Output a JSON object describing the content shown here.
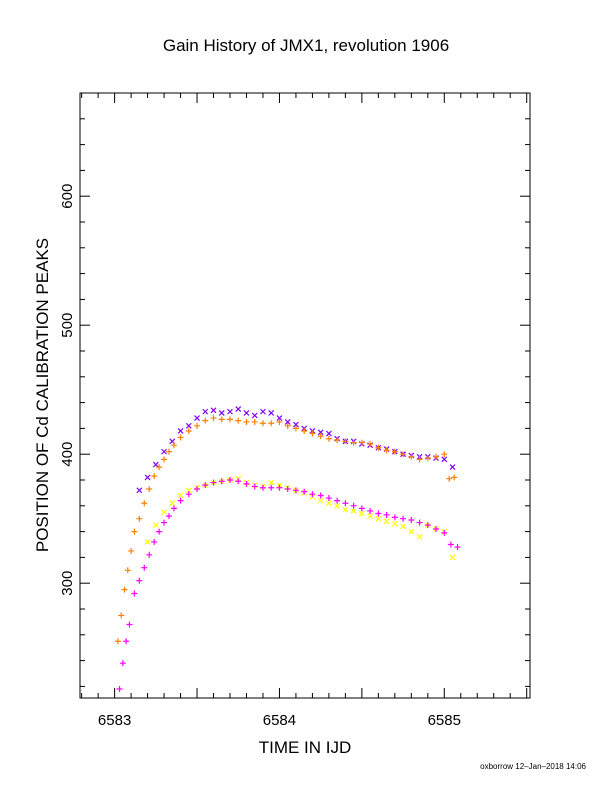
{
  "chart_data": {
    "type": "scatter",
    "title": "Gain History of JMX1, revolution 1906",
    "xlabel": "TIME IN IJD",
    "ylabel": "POSITION OF Cd CALIBRATION PEAKS",
    "xlim": [
      6582.79,
      6585.52
    ],
    "ylim": [
      211,
      680
    ],
    "x_ticks": [
      6583,
      6584,
      6585
    ],
    "y_ticks": [
      300,
      400,
      500,
      600
    ],
    "grid": false,
    "series": [
      {
        "marker": "x",
        "color": "#8000ff",
        "x": [
          6583.15,
          6583.2,
          6583.25,
          6583.3,
          6583.35,
          6583.4,
          6583.45,
          6583.5,
          6583.55,
          6583.6,
          6583.65,
          6583.7,
          6583.75,
          6583.8,
          6583.85,
          6583.9,
          6583.95,
          6584.0,
          6584.05,
          6584.1,
          6584.15,
          6584.2,
          6584.25,
          6584.3,
          6584.35,
          6584.4,
          6584.45,
          6584.5,
          6584.55,
          6584.6,
          6584.65,
          6584.7,
          6584.75,
          6584.8,
          6584.85,
          6584.9,
          6584.95,
          6585.0,
          6585.05
        ],
        "y": [
          372,
          382,
          392,
          402,
          410,
          418,
          422,
          428,
          433,
          434,
          432,
          433,
          435,
          432,
          430,
          433,
          432,
          428,
          425,
          423,
          420,
          418,
          417,
          416,
          412,
          410,
          410,
          408,
          407,
          405,
          404,
          402,
          400,
          399,
          398,
          398,
          397,
          396,
          390
        ]
      },
      {
        "marker": "+",
        "color": "#ff8000",
        "x": [
          6583.02,
          6583.04,
          6583.06,
          6583.08,
          6583.1,
          6583.12,
          6583.15,
          6583.18,
          6583.21,
          6583.24,
          6583.27,
          6583.3,
          6583.33,
          6583.36,
          6583.4,
          6583.45,
          6583.5,
          6583.55,
          6583.6,
          6583.65,
          6583.7,
          6583.75,
          6583.8,
          6583.85,
          6583.9,
          6583.95,
          6584.0,
          6584.05,
          6584.1,
          6584.15,
          6584.2,
          6584.25,
          6584.3,
          6584.35,
          6584.4,
          6584.45,
          6584.5,
          6584.55,
          6584.6,
          6584.65,
          6584.7,
          6584.75,
          6584.8,
          6584.85,
          6584.9,
          6584.95,
          6585.0,
          6585.03,
          6585.06
        ],
        "y": [
          255,
          275,
          295,
          310,
          325,
          340,
          350,
          362,
          373,
          383,
          390,
          396,
          402,
          407,
          413,
          418,
          422,
          426,
          428,
          427,
          427,
          426,
          425,
          425,
          424,
          424,
          425,
          422,
          420,
          418,
          416,
          414,
          412,
          411,
          410,
          409,
          409,
          408,
          405,
          403,
          402,
          400,
          398,
          396,
          397,
          398,
          400,
          381,
          382
        ]
      },
      {
        "marker": "x",
        "color": "#ffff00",
        "x": [
          6583.2,
          6583.25,
          6583.3,
          6583.35,
          6583.4,
          6583.45,
          6583.5,
          6583.55,
          6583.6,
          6583.65,
          6583.7,
          6583.75,
          6583.8,
          6583.85,
          6583.9,
          6583.95,
          6584.0,
          6584.05,
          6584.1,
          6584.15,
          6584.2,
          6584.25,
          6584.3,
          6584.35,
          6584.4,
          6584.45,
          6584.5,
          6584.55,
          6584.6,
          6584.65,
          6584.7,
          6584.75,
          6584.8,
          6584.85,
          6584.9,
          6584.95,
          6585.0,
          6585.05
        ],
        "y": [
          332,
          345,
          355,
          362,
          368,
          372,
          374,
          376,
          378,
          379,
          380,
          381,
          378,
          376,
          375,
          378,
          376,
          374,
          372,
          370,
          367,
          364,
          362,
          360,
          357,
          356,
          354,
          352,
          350,
          348,
          346,
          344,
          340,
          336,
          345,
          342,
          340,
          320
        ]
      },
      {
        "marker": "+",
        "color": "#ff00ff",
        "x": [
          6583.03,
          6583.05,
          6583.07,
          6583.09,
          6583.12,
          6583.15,
          6583.18,
          6583.21,
          6583.24,
          6583.27,
          6583.3,
          6583.33,
          6583.36,
          6583.4,
          6583.45,
          6583.5,
          6583.55,
          6583.6,
          6583.65,
          6583.7,
          6583.75,
          6583.8,
          6583.85,
          6583.9,
          6583.95,
          6584.0,
          6584.05,
          6584.1,
          6584.15,
          6584.2,
          6584.25,
          6584.3,
          6584.35,
          6584.4,
          6584.45,
          6584.5,
          6584.55,
          6584.6,
          6584.65,
          6584.7,
          6584.75,
          6584.8,
          6584.85,
          6584.9,
          6584.95,
          6585.0,
          6585.04,
          6585.08
        ],
        "y": [
          218,
          238,
          255,
          268,
          292,
          302,
          312,
          322,
          332,
          340,
          347,
          352,
          358,
          364,
          369,
          373,
          376,
          378,
          379,
          380,
          379,
          377,
          375,
          374,
          374,
          374,
          373,
          372,
          371,
          369,
          368,
          366,
          364,
          362,
          360,
          358,
          356,
          354,
          353,
          351,
          350,
          349,
          347,
          345,
          342,
          339,
          330,
          328
        ]
      }
    ]
  },
  "footer": "oxborrow 12–Jan–2018 14:06"
}
